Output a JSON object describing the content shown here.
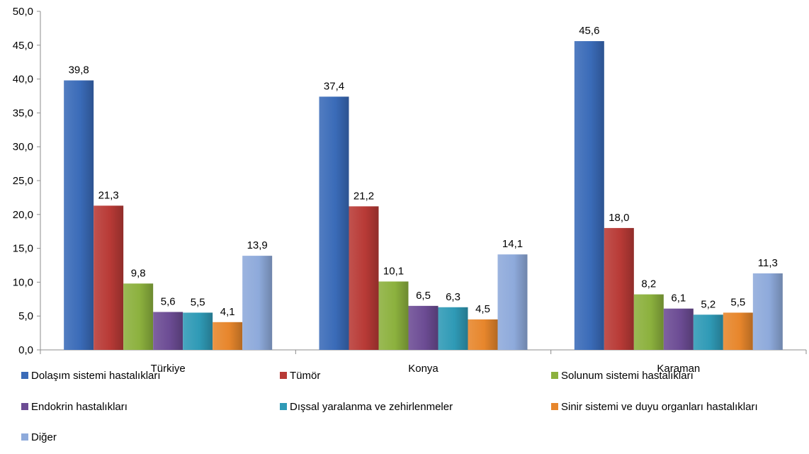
{
  "chart_data": {
    "type": "bar",
    "categories": [
      "Türkiye",
      "Konya",
      "Karaman"
    ],
    "series": [
      {
        "name": "Dolaşım sistemi hastalıkları",
        "color": "#3a6bb8",
        "values": [
          39.8,
          37.4,
          45.6
        ],
        "labels": [
          "39,8",
          "37,4",
          "45,6"
        ]
      },
      {
        "name": "Tümör",
        "color": "#b83a36",
        "values": [
          21.3,
          21.2,
          18.0
        ],
        "labels": [
          "21,3",
          "21,2",
          "18,0"
        ]
      },
      {
        "name": "Solunum sistemi hastalıkları",
        "color": "#8cb13e",
        "values": [
          9.8,
          10.1,
          8.2
        ],
        "labels": [
          "9,8",
          "10,1",
          "8,2"
        ]
      },
      {
        "name": "Endokrin hastalıkları",
        "color": "#6c4c94",
        "values": [
          5.6,
          6.5,
          6.1
        ],
        "labels": [
          "5,6",
          "6,5",
          "6,1"
        ]
      },
      {
        "name": "Dışsal yaralanma ve zehirlenmeler",
        "color": "#2f9ab6",
        "values": [
          5.5,
          6.3,
          5.2
        ],
        "labels": [
          "5,5",
          "6,3",
          "5,2"
        ]
      },
      {
        "name": "Sinir sistemi ve duyu organları hastalıkları",
        "color": "#e7862c",
        "values": [
          4.1,
          4.5,
          5.5
        ],
        "labels": [
          "4,1",
          "4,5",
          "5,5"
        ]
      },
      {
        "name": "Diğer",
        "color": "#8eaadb",
        "values": [
          13.9,
          14.1,
          11.3
        ],
        "labels": [
          "13,9",
          "14,1",
          "11,3"
        ]
      }
    ],
    "ylim": [
      0,
      50
    ],
    "yticks": [
      "0,0",
      "5,0",
      "10,0",
      "15,0",
      "20,0",
      "25,0",
      "30,0",
      "35,0",
      "40,0",
      "45,0",
      "50,0"
    ],
    "grid": false,
    "legend_position": "bottom"
  }
}
